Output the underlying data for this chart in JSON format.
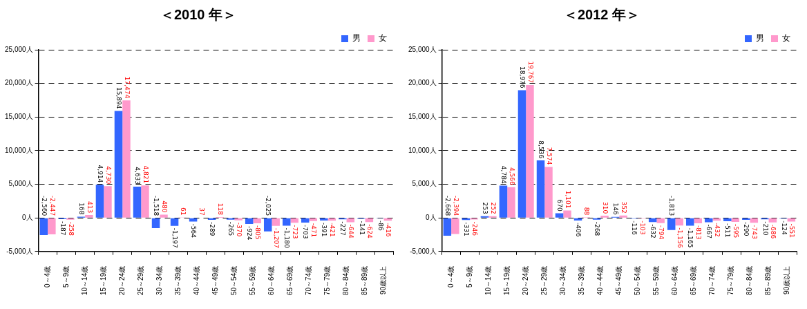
{
  "chart_data": [
    {
      "type": "bar",
      "title": "＜2010 年＞",
      "categories": [
        "0～4歳",
        "5～9歳",
        "10～14歳",
        "15～19歳",
        "20～24歳",
        "25～29歳",
        "30～34歳",
        "35～39歳",
        "40～44歳",
        "45～49歳",
        "50～54歳",
        "55～59歳",
        "60～64歳",
        "65～69歳",
        "70～74歳",
        "75～79歳",
        "80～84歳",
        "85～89歳",
        "90歳以上"
      ],
      "series": [
        {
          "name": "男",
          "color": "#3366ff",
          "values": [
            -2560,
            -187,
            168,
            4914,
            15894,
            4633,
            -1518,
            -1197,
            -564,
            -289,
            -265,
            -924,
            -2025,
            -1180,
            -703,
            -391,
            -227,
            -141,
            -86
          ],
          "value_labels": [
            "-2,560",
            "-187",
            "168",
            "4,914",
            "15,894",
            "4,633",
            "-1,518",
            "-1,197",
            "-564",
            "-289",
            "-265",
            "-924",
            "-2,025",
            "-1,180",
            "-703",
            "-391",
            "-227",
            "-141",
            "-86"
          ]
        },
        {
          "name": "女",
          "color": "#ff99cc",
          "values": [
            -2447,
            -258,
            413,
            4730,
            17474,
            4821,
            480,
            61,
            37,
            118,
            -370,
            -805,
            -1207,
            -723,
            -471,
            -421,
            -644,
            -624,
            -416
          ],
          "value_labels": [
            "-2,447",
            "-258",
            "413",
            "4,730",
            "17,474",
            "4,821",
            "480",
            "61",
            "37",
            "118",
            "-370",
            "-805",
            "-1,207",
            "-723",
            "-471",
            "-421",
            "-644",
            "-624",
            "-416"
          ]
        }
      ],
      "ylim": [
        -5000,
        25000
      ],
      "yticks": [
        {
          "value": -5000,
          "label": "-5,000人"
        },
        {
          "value": 0,
          "label": "0人"
        },
        {
          "value": 5000,
          "label": "5,000人"
        },
        {
          "value": 10000,
          "label": "10,000人"
        },
        {
          "value": 15000,
          "label": "15,000人"
        },
        {
          "value": 20000,
          "label": "20,000人"
        },
        {
          "value": 25000,
          "label": "25,000人"
        }
      ],
      "grid": "y",
      "legend": "top right"
    },
    {
      "type": "bar",
      "title": "＜2012 年＞",
      "categories": [
        "0～4歳",
        "5～9歳",
        "10～14歳",
        "15～19歳",
        "20～24歳",
        "25～29歳",
        "30～34歳",
        "35～39歳",
        "40～44歳",
        "45～49歳",
        "50～54歳",
        "55～59歳",
        "60～64歳",
        "65～69歳",
        "70～74歳",
        "75～79歳",
        "80～84歳",
        "85～89歳",
        "90歳以上"
      ],
      "series": [
        {
          "name": "男",
          "color": "#3366ff",
          "values": [
            -2668,
            -331,
            253,
            4784,
            18976,
            8536,
            670,
            -406,
            -268,
            146,
            -116,
            -632,
            -1813,
            -1165,
            -667,
            -511,
            -290,
            -210,
            -124
          ],
          "value_labels": [
            "-2,668",
            "-331",
            "253",
            "4,784",
            "18,976",
            "8,536",
            "670",
            "-406",
            "-268",
            "146",
            "-116",
            "-632",
            "-1,813",
            "-1,165",
            "-667",
            "-511",
            "-290",
            "-210",
            "-124"
          ]
        },
        {
          "name": "女",
          "color": "#ff99cc",
          "values": [
            -2394,
            -246,
            252,
            4566,
            19767,
            7574,
            1101,
            88,
            310,
            352,
            -103,
            -794,
            -1156,
            -813,
            -432,
            -595,
            -743,
            -686,
            -551
          ],
          "value_labels": [
            "-2,394",
            "-246",
            "252",
            "4,566",
            "19,767",
            "7,574",
            "1,101",
            "88",
            "310",
            "352",
            "-103",
            "-794",
            "-1,156",
            "-813",
            "-432",
            "-595",
            "-743",
            "-686",
            "-551"
          ]
        }
      ],
      "ylim": [
        -5000,
        25000
      ],
      "yticks": [
        {
          "value": -5000,
          "label": "-5,000人"
        },
        {
          "value": 0,
          "label": "0人"
        },
        {
          "value": 5000,
          "label": "5,000人"
        },
        {
          "value": 10000,
          "label": "10,000人"
        },
        {
          "value": 15000,
          "label": "15,000人"
        },
        {
          "value": 20000,
          "label": "20,000人"
        },
        {
          "value": 25000,
          "label": "25,000人"
        }
      ],
      "grid": "y",
      "legend": "top right"
    }
  ]
}
